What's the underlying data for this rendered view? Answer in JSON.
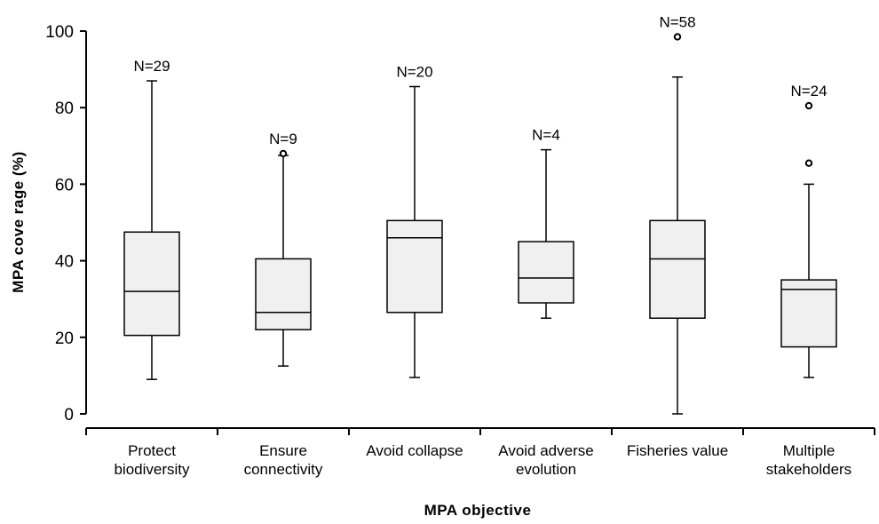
{
  "chart_data": {
    "type": "box",
    "xlabel": "MPA objective",
    "ylabel": "MPA cove rage (%)",
    "ylim": [
      0,
      100
    ],
    "yticks": [
      0,
      20,
      40,
      60,
      80,
      100
    ],
    "grid": false,
    "categories": [
      [
        "Protect",
        "biodiversity"
      ],
      [
        "Ensure",
        "connectivity"
      ],
      [
        "Avoid collapse"
      ],
      [
        "Avoid adverse",
        "evolution"
      ],
      [
        "Fisheries value"
      ],
      [
        "Multiple",
        "stakeholders"
      ]
    ],
    "boxes": [
      {
        "n_label": "N=29",
        "whisker_low": 9,
        "q1": 20.5,
        "median": 32,
        "q3": 47.5,
        "whisker_high": 87,
        "outliers": []
      },
      {
        "n_label": "N=9",
        "whisker_low": 12.5,
        "q1": 22,
        "median": 26.5,
        "q3": 40.5,
        "whisker_high": 67.5,
        "outliers": [
          68
        ]
      },
      {
        "n_label": "N=20",
        "whisker_low": 9.5,
        "q1": 26.5,
        "median": 46,
        "q3": 50.5,
        "whisker_high": 85.5,
        "outliers": []
      },
      {
        "n_label": "N=4",
        "whisker_low": 25,
        "q1": 29,
        "median": 35.5,
        "q3": 45,
        "whisker_high": 69,
        "outliers": []
      },
      {
        "n_label": "N=58",
        "whisker_low": 0,
        "q1": 25,
        "median": 40.5,
        "q3": 50.5,
        "whisker_high": 88,
        "outliers": [
          98.5
        ]
      },
      {
        "n_label": "N=24",
        "whisker_low": 9.5,
        "q1": 17.5,
        "median": 32.5,
        "q3": 35,
        "whisker_high": 60,
        "outliers": [
          65.5,
          80.5
        ]
      }
    ]
  }
}
